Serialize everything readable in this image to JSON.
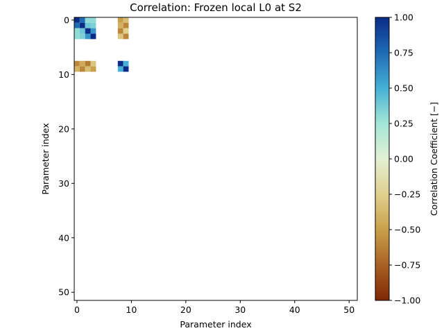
{
  "chart_data": {
    "type": "heatmap",
    "title": "Correlation: Frozen local L0 at S2",
    "xlabel": "Parameter index",
    "ylabel": "Parameter index",
    "n": 52,
    "xlim": [
      -0.5,
      51.5
    ],
    "ylim": [
      51.5,
      -0.5
    ],
    "xticks": [
      0,
      10,
      20,
      30,
      40,
      50
    ],
    "yticks": [
      0,
      10,
      20,
      30,
      40,
      50
    ],
    "colorbar": {
      "label": "Correlation Coefficient [−]",
      "min": -1.0,
      "max": 1.0,
      "ticks": [
        1.0,
        0.75,
        0.5,
        0.25,
        0.0,
        -0.25,
        -0.5,
        -0.75,
        -1.0
      ],
      "tick_labels": [
        "1.00",
        "0.75",
        "0.50",
        "0.25",
        "0.00",
        "−0.25",
        "−0.50",
        "−0.75",
        "−1.00"
      ]
    },
    "params": [
      0,
      1,
      2,
      3,
      8,
      9
    ],
    "matrix": [
      [
        1.0,
        0.75,
        0.3,
        0.3,
        -0.5,
        -0.35
      ],
      [
        0.75,
        1.0,
        0.4,
        0.35,
        -0.4,
        -0.6
      ],
      [
        0.3,
        0.4,
        1.0,
        0.6,
        -0.6,
        -0.25
      ],
      [
        0.3,
        0.35,
        0.6,
        1.0,
        -0.3,
        -0.6
      ],
      [
        -0.6,
        -0.45,
        -0.65,
        -0.3,
        1.0,
        0.5
      ],
      [
        -0.4,
        -0.6,
        -0.35,
        -0.5,
        0.5,
        1.0
      ]
    ]
  }
}
